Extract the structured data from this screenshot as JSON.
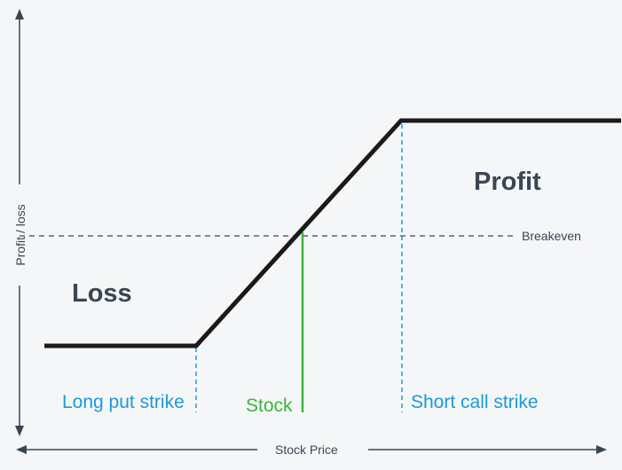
{
  "diagram": {
    "x_axis_label": "Stock Price",
    "y_axis_label": "Profit / loss",
    "breakeven_label": "Breakeven",
    "profit_label": "Profit",
    "loss_label": "Loss",
    "long_put_label": "Long put strike",
    "stock_label": "Stock",
    "short_call_label": "Short call strike"
  },
  "colors": {
    "payoff_line": "#1a1a1a",
    "strike_marker": "#1a9ad6",
    "stock_marker": "#3cb43c",
    "text": "#3a4652",
    "axis": "#3a4652"
  }
}
